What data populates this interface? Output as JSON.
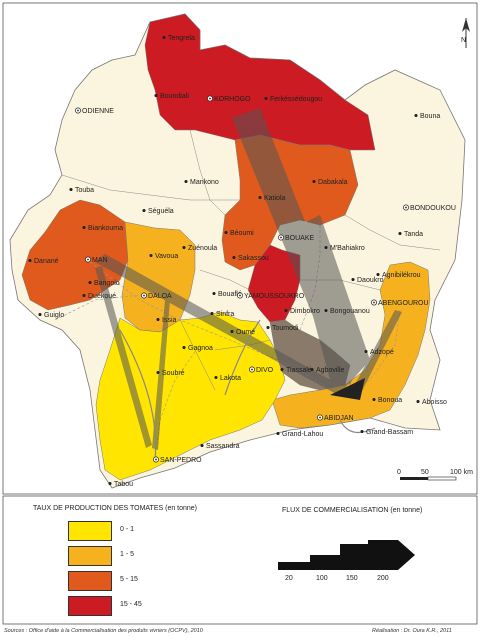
{
  "north_label": "N",
  "towns": [
    {
      "name": "Tengrela",
      "kind": "town"
    },
    {
      "name": "Boundiali",
      "kind": "town"
    },
    {
      "name": "KORHOGO",
      "kind": "capital"
    },
    {
      "name": "Ferkéssédougou",
      "kind": "town"
    },
    {
      "name": "ODIENNE",
      "kind": "capital"
    },
    {
      "name": "Bouna",
      "kind": "town"
    },
    {
      "name": "Dabakala",
      "kind": "town"
    },
    {
      "name": "Katiola",
      "kind": "town"
    },
    {
      "name": "Touba",
      "kind": "town"
    },
    {
      "name": "Mankono",
      "kind": "town"
    },
    {
      "name": "Séguéla",
      "kind": "town"
    },
    {
      "name": "BONDOUKOU",
      "kind": "capital"
    },
    {
      "name": "Tanda",
      "kind": "town"
    },
    {
      "name": "Biankouma",
      "kind": "town"
    },
    {
      "name": "Béoumi",
      "kind": "town"
    },
    {
      "name": "BOUAKE",
      "kind": "capital"
    },
    {
      "name": "M'Bahiakro",
      "kind": "town"
    },
    {
      "name": "Danané",
      "kind": "town"
    },
    {
      "name": "MAN",
      "kind": "capital"
    },
    {
      "name": "Vavoua",
      "kind": "town"
    },
    {
      "name": "Zuénoula",
      "kind": "town"
    },
    {
      "name": "Sakassou",
      "kind": "town"
    },
    {
      "name": "Agnibilékrou",
      "kind": "town"
    },
    {
      "name": "Daoukro",
      "kind": "town"
    },
    {
      "name": "Bangolo",
      "kind": "town"
    },
    {
      "name": "Duékoué",
      "kind": "town"
    },
    {
      "name": "DALOA",
      "kind": "capital"
    },
    {
      "name": "Bouaflé",
      "kind": "town"
    },
    {
      "name": "YAMOUSSOUKRO",
      "kind": "capital"
    },
    {
      "name": "ABENGOUROU",
      "kind": "capital"
    },
    {
      "name": "Guiglo",
      "kind": "town"
    },
    {
      "name": "Issia",
      "kind": "town"
    },
    {
      "name": "Sinfra",
      "kind": "town"
    },
    {
      "name": "Dimbokro",
      "kind": "town"
    },
    {
      "name": "Bongouanou",
      "kind": "town"
    },
    {
      "name": "Toumodi",
      "kind": "town"
    },
    {
      "name": "Oumé",
      "kind": "town"
    },
    {
      "name": "Gagnoa",
      "kind": "town"
    },
    {
      "name": "Adzopé",
      "kind": "town"
    },
    {
      "name": "DIVO",
      "kind": "capital"
    },
    {
      "name": "Tiassalé",
      "kind": "town"
    },
    {
      "name": "Agboville",
      "kind": "town"
    },
    {
      "name": "Soubré",
      "kind": "town"
    },
    {
      "name": "Lakota",
      "kind": "town"
    },
    {
      "name": "Bonoua",
      "kind": "town"
    },
    {
      "name": "Aboisso",
      "kind": "town"
    },
    {
      "name": "ABIDJAN",
      "kind": "capital"
    },
    {
      "name": "Grand-Lahou",
      "kind": "town"
    },
    {
      "name": "Grand-Bassam",
      "kind": "town"
    },
    {
      "name": "Sassandra",
      "kind": "town"
    },
    {
      "name": "SAN-PEDRO",
      "kind": "capital"
    },
    {
      "name": "Tabou",
      "kind": "town"
    }
  ],
  "scale_bar": {
    "labels": [
      "0",
      "50",
      "100 km"
    ]
  },
  "legend_production": {
    "title": "TAUX DE PRODUCTION DES TOMATES (en tonne)",
    "classes": [
      {
        "label": "0 - 1",
        "color": "#ffe500"
      },
      {
        "label": "1 - 5",
        "color": "#f5b21e"
      },
      {
        "label": "5 - 15",
        "color": "#e05a1e"
      },
      {
        "label": "15 - 45",
        "color": "#cc1b23"
      }
    ]
  },
  "legend_flow": {
    "title": "FLUX DE COMMERCIALISATION (en tonne)",
    "values": [
      "20",
      "100",
      "150",
      "200"
    ]
  },
  "footer": {
    "source": "Sources : Office d'aide à la Commercialisation des produits vivriers (OCPV), 2010",
    "credit": "Réalisation : Dr. Oura K.R., 2011"
  }
}
